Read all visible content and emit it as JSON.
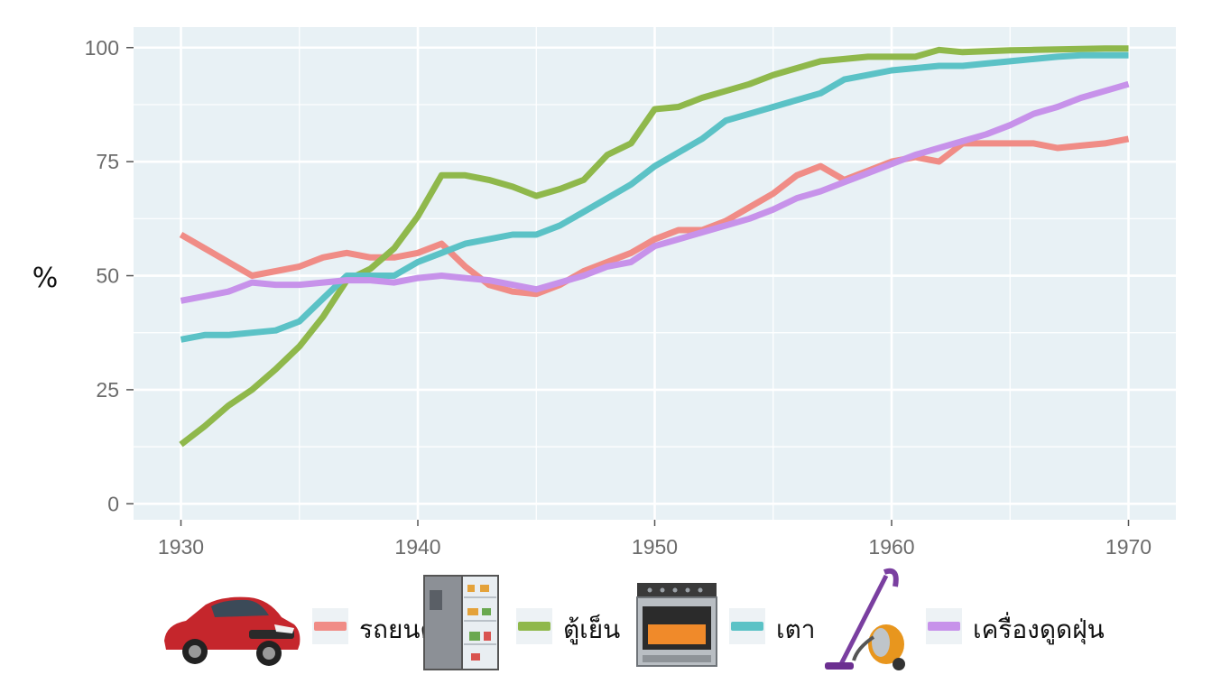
{
  "chart_data": {
    "type": "line",
    "title": "",
    "xlabel": "",
    "ylabel": "%",
    "xlim": [
      1928,
      1972
    ],
    "ylim": [
      -3.5,
      104.5
    ],
    "x_ticks": [
      1930,
      1940,
      1950,
      1960,
      1970
    ],
    "y_ticks": [
      0,
      25,
      50,
      75,
      100
    ],
    "grid": true,
    "legend_position": "bottom",
    "series": [
      {
        "name": "รถยนต์",
        "color": "#f08c86",
        "x": [
          1930,
          1931,
          1932,
          1933,
          1934,
          1935,
          1936,
          1937,
          1938,
          1939,
          1940,
          1941,
          1942,
          1943,
          1944,
          1945,
          1946,
          1947,
          1948,
          1949,
          1950,
          1951,
          1952,
          1953,
          1954,
          1955,
          1956,
          1957,
          1958,
          1959,
          1960,
          1961,
          1962,
          1963,
          1964,
          1965,
          1966,
          1967,
          1968,
          1969,
          1970
        ],
        "values": [
          59,
          56,
          53,
          50,
          51,
          52,
          54,
          55,
          54,
          54,
          55,
          57,
          52,
          48,
          46.5,
          46,
          48,
          51,
          53,
          55,
          58,
          60,
          60,
          62,
          65,
          68,
          72,
          74,
          71,
          73,
          75,
          76,
          75,
          79,
          79,
          79,
          79,
          78,
          78.5,
          79,
          80
        ]
      },
      {
        "name": "ตู้เย็น",
        "color": "#8fb84b",
        "x": [
          1930,
          1931,
          1932,
          1933,
          1934,
          1935,
          1936,
          1937,
          1938,
          1939,
          1940,
          1941,
          1942,
          1943,
          1944,
          1945,
          1946,
          1947,
          1948,
          1949,
          1950,
          1951,
          1952,
          1953,
          1954,
          1955,
          1956,
          1957,
          1958,
          1959,
          1960,
          1961,
          1962,
          1963,
          1964,
          1965,
          1966,
          1967,
          1968,
          1969,
          1970
        ],
        "values": [
          13,
          17,
          21.5,
          25,
          29.5,
          34.5,
          41,
          49,
          51.5,
          56,
          63,
          72,
          72,
          71,
          69.5,
          67.5,
          69,
          71,
          76.5,
          79,
          86.5,
          87,
          89,
          90.5,
          92,
          94,
          95.5,
          97,
          97.5,
          98,
          98,
          98,
          99.5,
          99,
          99.2,
          99.4,
          99.5,
          99.6,
          99.7,
          99.8,
          99.8
        ]
      },
      {
        "name": "เตา",
        "color": "#5bc2c6",
        "x": [
          1930,
          1931,
          1932,
          1933,
          1934,
          1935,
          1936,
          1937,
          1938,
          1939,
          1940,
          1941,
          1942,
          1943,
          1944,
          1945,
          1946,
          1947,
          1948,
          1949,
          1950,
          1951,
          1952,
          1953,
          1954,
          1955,
          1956,
          1957,
          1958,
          1959,
          1960,
          1961,
          1962,
          1963,
          1964,
          1965,
          1966,
          1967,
          1968,
          1969,
          1970
        ],
        "values": [
          36,
          37,
          37,
          37.5,
          38,
          40,
          45,
          50,
          50,
          50,
          53,
          55,
          57,
          58,
          59,
          59,
          61,
          64,
          67,
          70,
          74,
          77,
          80,
          84,
          85.5,
          87,
          88.5,
          90,
          93,
          94,
          95,
          95.5,
          96,
          96,
          96.5,
          97,
          97.5,
          98,
          98.3,
          98.3,
          98.3
        ]
      },
      {
        "name": "เครื่องดูดฝุ่น",
        "color": "#c792ea",
        "x": [
          1930,
          1931,
          1932,
          1933,
          1934,
          1935,
          1936,
          1937,
          1938,
          1939,
          1940,
          1941,
          1942,
          1943,
          1944,
          1945,
          1946,
          1947,
          1948,
          1949,
          1950,
          1951,
          1952,
          1953,
          1954,
          1955,
          1956,
          1957,
          1958,
          1959,
          1960,
          1961,
          1962,
          1963,
          1964,
          1965,
          1966,
          1967,
          1968,
          1969,
          1970
        ],
        "values": [
          44.5,
          45.5,
          46.5,
          48.5,
          48,
          48,
          48.5,
          49,
          49,
          48.5,
          49.5,
          50,
          49.5,
          49,
          48,
          47,
          48.5,
          50,
          52,
          53,
          56.5,
          58,
          59.5,
          61,
          62.5,
          64.5,
          67,
          68.5,
          70.5,
          72.5,
          74.5,
          76.5,
          78,
          79.5,
          81,
          83,
          85.5,
          87,
          89,
          90.5,
          92
        ]
      }
    ]
  },
  "legend": {
    "items": [
      {
        "label": "รถยนต์",
        "color": "#f08c86",
        "icon": "car-icon"
      },
      {
        "label": "ตู้เย็น",
        "color": "#8fb84b",
        "icon": "refrigerator-icon"
      },
      {
        "label": "เตา",
        "color": "#5bc2c6",
        "icon": "stove-icon"
      },
      {
        "label": "เครื่องดูดฝุ่น",
        "color": "#c792ea",
        "icon": "vacuum-cleaner-icon"
      }
    ]
  }
}
